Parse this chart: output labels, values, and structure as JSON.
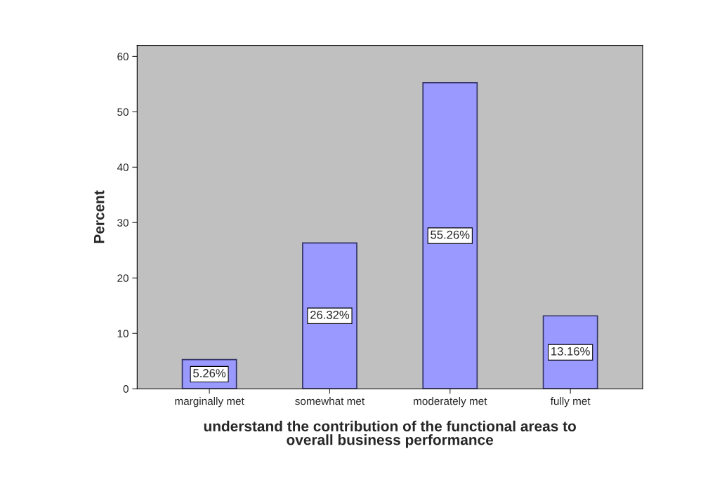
{
  "chart_data": {
    "type": "bar",
    "xlabel": "understand the contribution of the functional areas to\noverall business performance",
    "ylabel": "Percent",
    "categories": [
      "marginally met",
      "somewhat met",
      "moderately met",
      "fully met"
    ],
    "values": [
      5.26,
      26.32,
      55.26,
      13.16
    ],
    "value_labels": [
      "5.26%",
      "26.32%",
      "55.26%",
      "13.16%"
    ],
    "color": "#9999ff",
    "ylim": [
      0,
      62
    ],
    "yticks": [
      0,
      10,
      20,
      30,
      40,
      50,
      60
    ],
    "grid": false
  }
}
